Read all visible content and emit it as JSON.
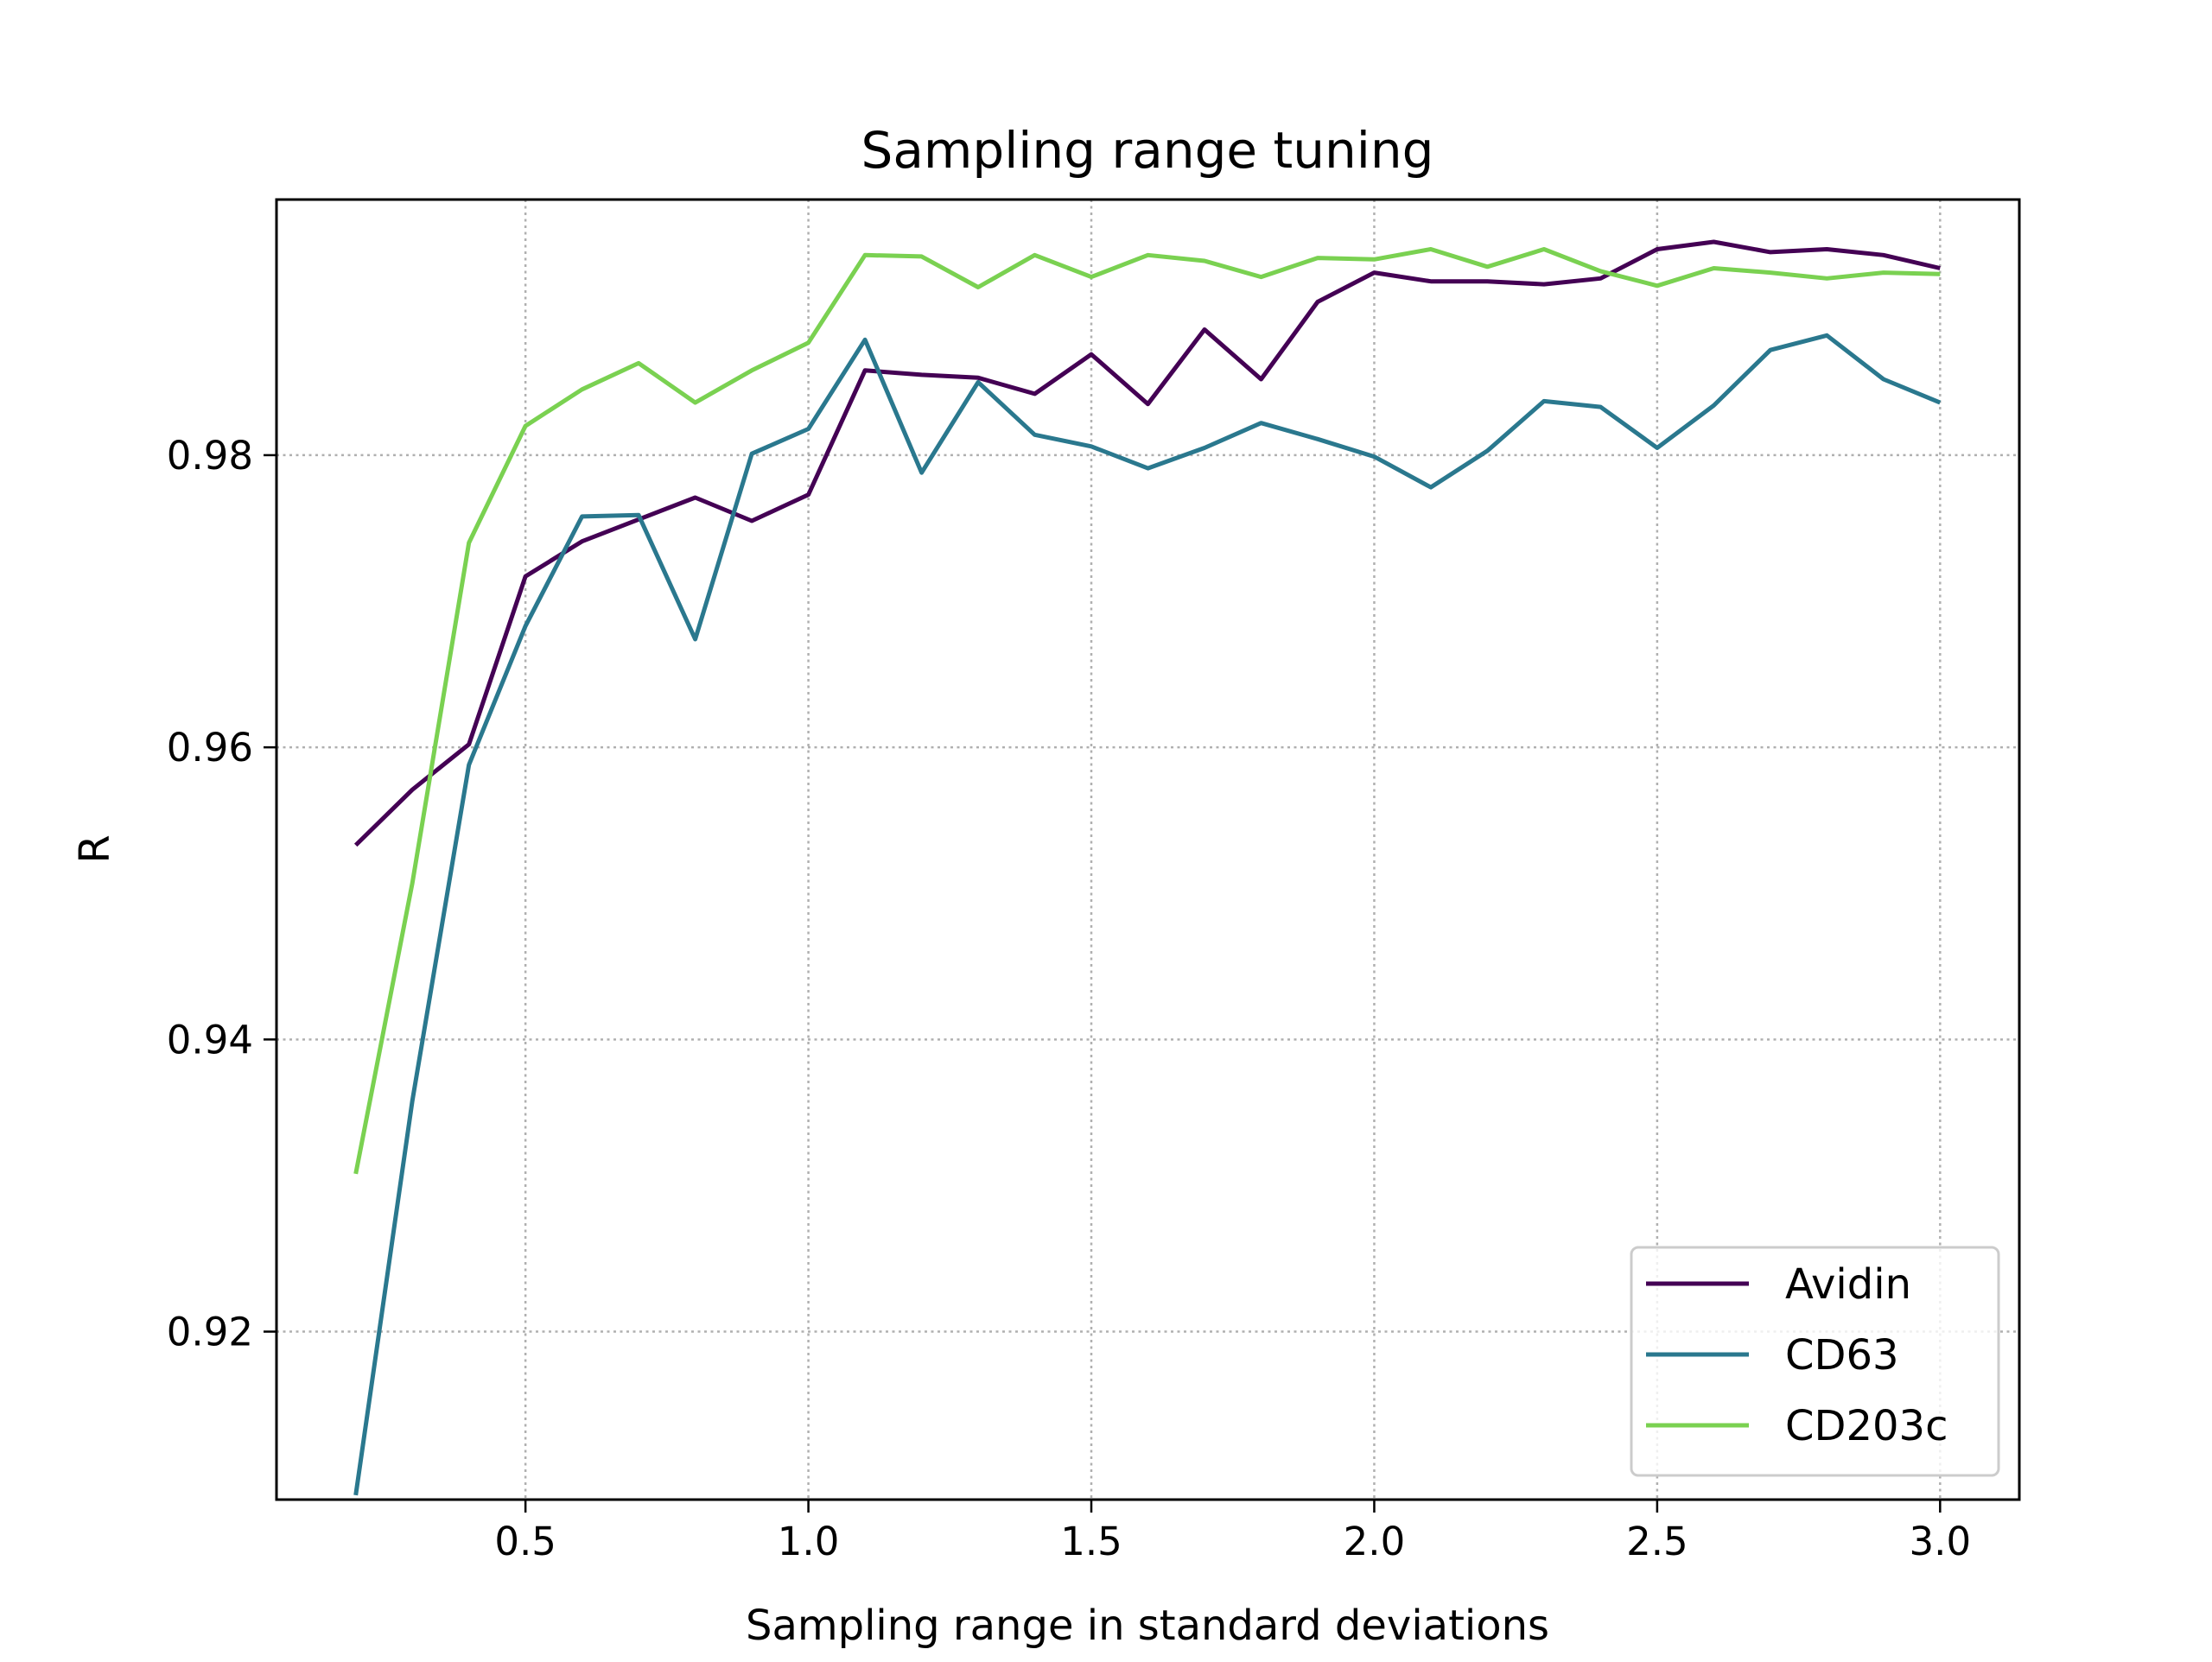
{
  "chart_data": {
    "type": "line",
    "title": "Sampling range tuning",
    "xlabel": "Sampling range in standard deviations",
    "ylabel": "R",
    "xlim": [
      0.06,
      3.14
    ],
    "ylim": [
      0.9085,
      0.9975
    ],
    "xticks": [
      0.5,
      1.0,
      1.5,
      2.0,
      2.5,
      3.0
    ],
    "xtick_labels": [
      "0.5",
      "1.0",
      "1.5",
      "2.0",
      "2.5",
      "3.0"
    ],
    "yticks": [
      0.92,
      0.94,
      0.96,
      0.98
    ],
    "ytick_labels": [
      "0.92",
      "0.94",
      "0.96",
      "0.98"
    ],
    "grid": true,
    "legend_position": "lower-right",
    "x": [
      0.2,
      0.3,
      0.4,
      0.5,
      0.6,
      0.7,
      0.8,
      0.9,
      1.0,
      1.1,
      1.2,
      1.3,
      1.4,
      1.5,
      1.6,
      1.7,
      1.8,
      1.9,
      2.0,
      2.1,
      2.2,
      2.3,
      2.4,
      2.5,
      2.6,
      2.7,
      2.8,
      2.9,
      3.0
    ],
    "series": [
      {
        "name": "Avidin",
        "color": "#440154",
        "values": [
          0.9533,
          0.9571,
          0.9602,
          0.9717,
          0.9741,
          0.9756,
          0.9771,
          0.9755,
          0.9773,
          0.9858,
          0.9855,
          0.9853,
          0.9842,
          0.9869,
          0.9835,
          0.9886,
          0.9852,
          0.9905,
          0.9925,
          0.9919,
          0.9919,
          0.9917,
          0.9921,
          0.9941,
          0.9946,
          0.9939,
          0.9941,
          0.9937,
          0.9928
        ]
      },
      {
        "name": "CD63",
        "color": "#2a788e",
        "values": [
          0.9088,
          0.9358,
          0.9588,
          0.9683,
          0.9758,
          0.9759,
          0.9674,
          0.9801,
          0.9818,
          0.9879,
          0.9788,
          0.985,
          0.9814,
          0.9806,
          0.9791,
          0.9805,
          0.9822,
          0.9811,
          0.9799,
          0.9778,
          0.9803,
          0.9837,
          0.9833,
          0.9805,
          0.9834,
          0.9872,
          0.9882,
          0.9852,
          0.9836
        ]
      },
      {
        "name": "CD203c",
        "color": "#7ad151",
        "values": [
          0.9308,
          0.9507,
          0.974,
          0.982,
          0.9845,
          0.9863,
          0.9836,
          0.9858,
          0.9877,
          0.9937,
          0.9936,
          0.9915,
          0.9937,
          0.9922,
          0.9937,
          0.9933,
          0.9922,
          0.9935,
          0.9934,
          0.9941,
          0.9929,
          0.9941,
          0.9926,
          0.9916,
          0.9928,
          0.9925,
          0.9921,
          0.9925,
          0.9924
        ]
      }
    ]
  }
}
